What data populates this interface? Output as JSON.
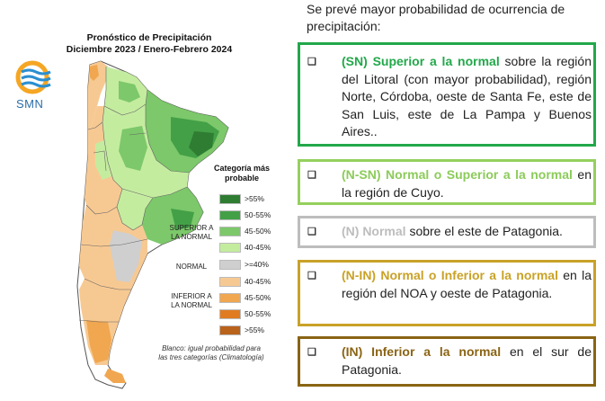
{
  "map": {
    "title_line1": "Pronóstico de Precipitación",
    "title_line2": "Diciembre 2023 / Enero-Febrero 2024",
    "logo_text": "SMN",
    "legend_title": "Categoría más probable",
    "legend_items": [
      {
        "label": ">55%",
        "color": "#2e7d32"
      },
      {
        "label": "50-55%",
        "color": "#43a047"
      },
      {
        "label": "45-50%",
        "color": "#7cc86a"
      },
      {
        "label": "40-45%",
        "color": "#c4ec9f"
      },
      {
        "label": ">=40%",
        "color": "#cfcfcf"
      },
      {
        "label": "40-45%",
        "color": "#f7c992"
      },
      {
        "label": "45-50%",
        "color": "#f0a750"
      },
      {
        "label": "50-55%",
        "color": "#e07b21"
      },
      {
        "label": ">55%",
        "color": "#b8621c"
      }
    ],
    "group_superior_line1": "SUPERIOR A",
    "group_superior_line2": "LA NORMAL",
    "group_normal": "NORMAL",
    "group_inferior_line1": "INFERIOR A",
    "group_inferior_line2": "LA NORMAL",
    "note_line1": "Blanco: igual probabilidad para",
    "note_line2": "las tres categorías (Climatología)"
  },
  "intro_text": "Se prevé mayor probabilidad de ocurrencia de precipitación:",
  "boxes": [
    {
      "checkbox": "❑",
      "highlight": "(SN) Superior a la normal",
      "text": " sobre la región del Litoral (con mayor probabilidad), región Norte, Córdoba, oeste de Santa Fe, este de San Luis, este de La Pampa y Buenos Aires..",
      "border": "#22a84a",
      "highlight_color": "#22a84a"
    },
    {
      "checkbox": "❑",
      "highlight": "(N-SN) Normal o Superior a la normal",
      "text": " en la región de Cuyo.",
      "border": "#95d05e",
      "highlight_color": "#8ccb5a"
    },
    {
      "checkbox": "❑",
      "highlight": "(N) Normal",
      "text": "  sobre el este de Patagonia.",
      "border": "#bdbdbd",
      "highlight_color": "#bdbdbd"
    },
    {
      "checkbox": "❑",
      "highlight": "(N-IN) Normal o Inferior a la normal",
      "text": " en la región del NOA y oeste de Patagonia.",
      "border": "#c9a227",
      "highlight_color": "#c9a227"
    },
    {
      "checkbox": "❑",
      "highlight": "(IN) Inferior a la normal",
      "text": "   en el sur de Patagonia.",
      "border": "#8a6414",
      "highlight_color": "#8a6414"
    }
  ]
}
